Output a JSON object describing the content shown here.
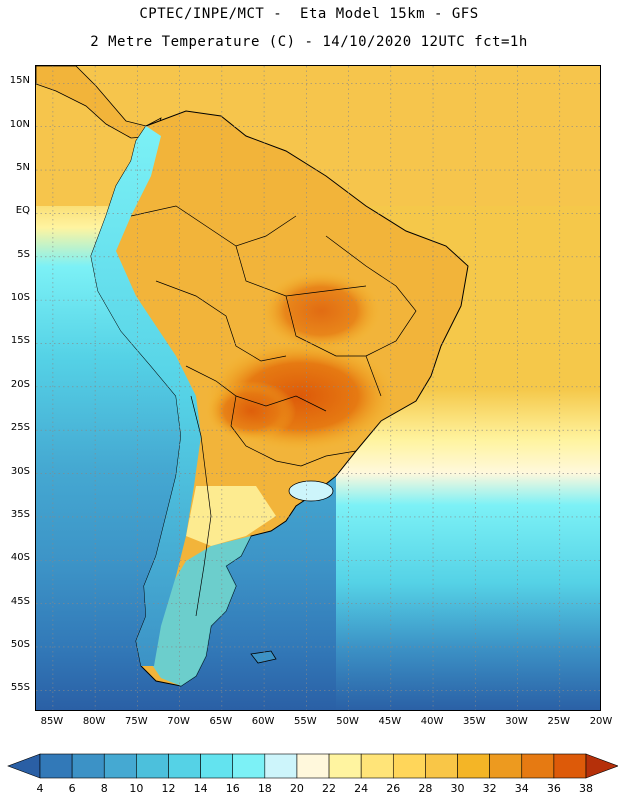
{
  "header": {
    "line1": "CPTEC/INPE/MCT -  Eta Model 15km - GFS",
    "line2": "2 Metre Temperature (C) - 14/10/2020 12UTC fct=1h"
  },
  "map": {
    "lat_labels": [
      "15N",
      "10N",
      "5N",
      "EQ",
      "5S",
      "10S",
      "15S",
      "20S",
      "25S",
      "30S",
      "35S",
      "40S",
      "45S",
      "50S",
      "55S"
    ],
    "lon_labels": [
      "85W",
      "80W",
      "75W",
      "70W",
      "65W",
      "60W",
      "55W",
      "50W",
      "45W",
      "40W",
      "35W",
      "30W",
      "25W",
      "20W"
    ],
    "lat_values": [
      15,
      10,
      5,
      0,
      -5,
      -10,
      -15,
      -20,
      -25,
      -30,
      -35,
      -40,
      -45,
      -50,
      -55
    ],
    "lon_values": [
      -85,
      -80,
      -75,
      -70,
      -65,
      -60,
      -55,
      -50,
      -45,
      -40,
      -35,
      -30,
      -25,
      -20
    ]
  },
  "colorbar": {
    "labels": [
      "4",
      "6",
      "8",
      "10",
      "12",
      "14",
      "16",
      "18",
      "20",
      "22",
      "24",
      "26",
      "28",
      "30",
      "32",
      "34",
      "36",
      "38"
    ],
    "colors": [
      "#2a5fa5",
      "#3279b8",
      "#3c92c6",
      "#45a9d2",
      "#4cc0dc",
      "#55d2e6",
      "#63e3ef",
      "#7cf1f6",
      "#cdf5fb",
      "#fff8dc",
      "#fff4a0",
      "#ffe478",
      "#ffd65a",
      "#f9c647",
      "#f4b526",
      "#ed9a1f",
      "#e67a12",
      "#dd5a09",
      "#c7420a",
      "#b5300a"
    ],
    "over_color": "#b5300a",
    "under_color": "#2a5fa5"
  }
}
